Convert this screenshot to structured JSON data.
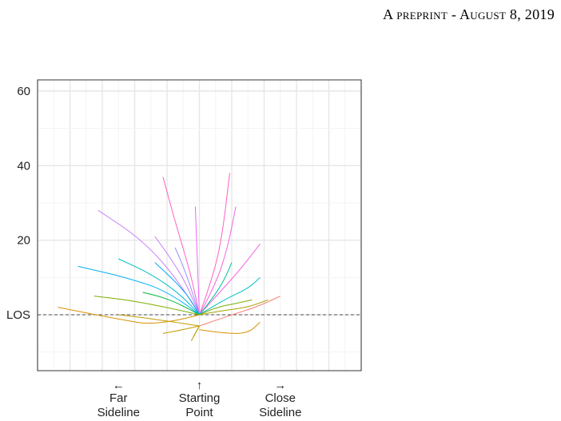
{
  "header": {
    "text": "A preprint - August 8, 2019"
  },
  "chart_data": {
    "type": "line",
    "title": "",
    "xlabel": "",
    "ylabel": "",
    "xlim": [
      -40,
      40
    ],
    "ylim": [
      -15,
      63
    ],
    "y_ticks": [
      {
        "value": 60,
        "label": "60"
      },
      {
        "value": 40,
        "label": "40"
      },
      {
        "value": 20,
        "label": "20"
      },
      {
        "value": 0,
        "label": "LOS"
      }
    ],
    "x_labels": [
      {
        "value": -20,
        "arrow": "←",
        "line1": "Far",
        "line2": "Sideline"
      },
      {
        "value": 0,
        "arrow": "↑",
        "line1": "Starting",
        "line2": "Point"
      },
      {
        "value": 20,
        "arrow": "→",
        "line1": "Close",
        "line2": "Sideline"
      }
    ],
    "grid": true,
    "reference_line": {
      "y": 0,
      "label": "LOS",
      "style": "dashed"
    },
    "legend": "none",
    "series": [
      {
        "color": "#ff61c3",
        "x": [
          0,
          -1.5,
          -3.5,
          -6,
          -9
        ],
        "y": [
          0,
          8,
          16,
          25,
          37
        ]
      },
      {
        "color": "#ff61c3",
        "x": [
          0,
          3,
          5.5,
          7.5
        ],
        "y": [
          0,
          9,
          20,
          38
        ]
      },
      {
        "color": "#f564e3",
        "x": [
          0,
          4,
          7,
          9
        ],
        "y": [
          0,
          8,
          18,
          29
        ]
      },
      {
        "color": "#e76bf3",
        "x": [
          0,
          -0.5,
          -1
        ],
        "y": [
          0,
          14,
          29
        ]
      },
      {
        "color": "#f564e3",
        "x": [
          0,
          5,
          10,
          15
        ],
        "y": [
          0,
          6,
          12,
          19
        ]
      },
      {
        "color": "#c77cff",
        "x": [
          0,
          -5,
          -14,
          -25
        ],
        "y": [
          0,
          9,
          20,
          28
        ]
      },
      {
        "color": "#c77cff",
        "x": [
          0,
          -3,
          -7,
          -11
        ],
        "y": [
          0,
          8,
          15,
          21
        ]
      },
      {
        "color": "#9590ff",
        "x": [
          0,
          -2,
          -4,
          -6
        ],
        "y": [
          0,
          7,
          13,
          18
        ]
      },
      {
        "color": "#00b0f6",
        "x": [
          0,
          -7,
          -18,
          -30
        ],
        "y": [
          0,
          6,
          10,
          13
        ]
      },
      {
        "color": "#00bfc4",
        "x": [
          0,
          -4,
          -12,
          -20
        ],
        "y": [
          0,
          5,
          11,
          15
        ]
      },
      {
        "color": "#00a9ff",
        "x": [
          0,
          -2,
          -6,
          -11
        ],
        "y": [
          0,
          4,
          9,
          14
        ]
      },
      {
        "color": "#00c19a",
        "x": [
          0,
          3,
          6,
          8
        ],
        "y": [
          0,
          4,
          9,
          14
        ]
      },
      {
        "color": "#00bfc4",
        "x": [
          0,
          6,
          12,
          15
        ],
        "y": [
          0,
          4,
          7,
          10
        ]
      },
      {
        "color": "#00ba38",
        "x": [
          0,
          -5,
          -10,
          -14
        ],
        "y": [
          0,
          3,
          5,
          6
        ]
      },
      {
        "color": "#7cae00",
        "x": [
          0,
          -8,
          -18,
          -26
        ],
        "y": [
          0,
          2,
          4,
          5
        ]
      },
      {
        "color": "#7cae00",
        "x": [
          0,
          4,
          9,
          13
        ],
        "y": [
          0,
          2,
          3,
          4
        ]
      },
      {
        "color": "#d89000",
        "x": [
          0,
          -10,
          -21,
          -35
        ],
        "y": [
          0,
          -3,
          -1,
          2
        ]
      },
      {
        "color": "#a3a500",
        "x": [
          0,
          5,
          12,
          17
        ],
        "y": [
          0,
          1,
          2,
          4
        ]
      },
      {
        "color": "#f8766d",
        "x": [
          0,
          8,
          14,
          20
        ],
        "y": [
          -3,
          0,
          2,
          5
        ]
      },
      {
        "color": "#d89000",
        "x": [
          0,
          6,
          12,
          15
        ],
        "y": [
          -4,
          -5,
          -5,
          -2
        ]
      },
      {
        "color": "#c49a00",
        "x": [
          0,
          -12,
          -20
        ],
        "y": [
          -3,
          -1,
          0
        ]
      },
      {
        "color": "#c49a00",
        "x": [
          0,
          -4,
          -9
        ],
        "y": [
          -3,
          -4,
          -5
        ]
      },
      {
        "color": "#c49a00",
        "x": [
          0,
          -1.5
        ],
        "y": [
          -3,
          -6
        ]
      },
      {
        "color": "#b79f00",
        "x": [
          0,
          -2
        ],
        "y": [
          -3,
          -7
        ]
      }
    ]
  }
}
